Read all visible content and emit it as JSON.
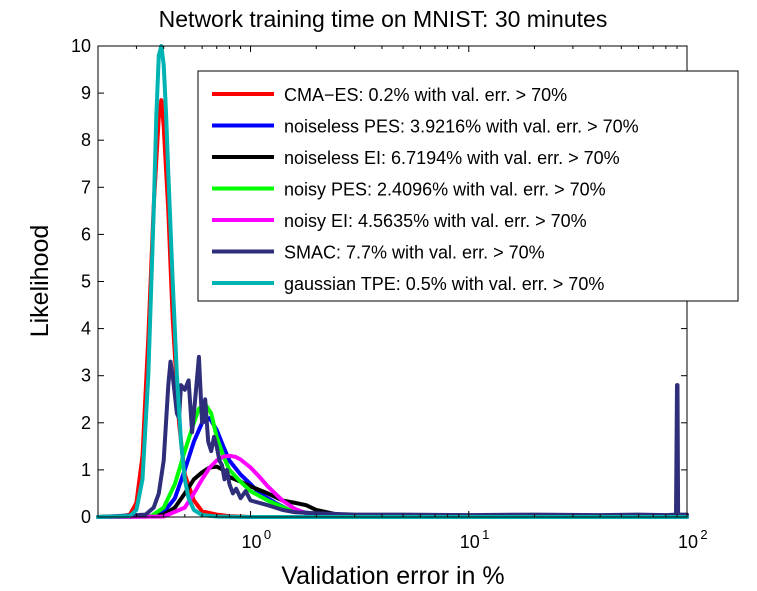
{
  "chart_data": {
    "type": "line",
    "title": "Network training time on MNIST: 30 minutes",
    "xlabel": "Validation error in %",
    "ylabel": "Likelihood",
    "xscale": "log",
    "xlim": [
      0.2,
      100
    ],
    "ylim": [
      0,
      10
    ],
    "xticks": [
      {
        "value": 1,
        "base": "10",
        "exp": "0"
      },
      {
        "value": 10,
        "base": "10",
        "exp": "1"
      },
      {
        "value": 100,
        "base": "10",
        "exp": "2"
      }
    ],
    "yticks": [
      {
        "value": 0,
        "label": "0"
      },
      {
        "value": 1,
        "label": "1"
      },
      {
        "value": 2,
        "label": "2"
      },
      {
        "value": 3,
        "label": "3"
      },
      {
        "value": 4,
        "label": "4"
      },
      {
        "value": 5,
        "label": "5"
      },
      {
        "value": 6,
        "label": "6"
      },
      {
        "value": 7,
        "label": "7"
      },
      {
        "value": 8,
        "label": "8"
      },
      {
        "value": 9,
        "label": "9"
      },
      {
        "value": 10,
        "label": "10"
      }
    ],
    "legend_position": "top-right",
    "series": [
      {
        "name": "CMA−ES: 0.2% with val. err. > 70%",
        "color": "#ff0000",
        "x": [
          0.2,
          0.25,
          0.28,
          0.3,
          0.32,
          0.34,
          0.36,
          0.38,
          0.39,
          0.4,
          0.42,
          0.44,
          0.47,
          0.5,
          0.55,
          0.6,
          0.7,
          0.8,
          1.0,
          1.5,
          2.0,
          100
        ],
        "y": [
          0,
          0,
          0.05,
          0.3,
          1.3,
          3.8,
          6.6,
          8.5,
          8.85,
          8.3,
          6.5,
          4.2,
          2.0,
          0.9,
          0.35,
          0.12,
          0.05,
          0.02,
          0,
          0,
          0,
          0
        ]
      },
      {
        "name": "noiseless PES: 3.9216% with val. err. > 70%",
        "color": "#0000ff",
        "x": [
          0.2,
          0.35,
          0.4,
          0.45,
          0.5,
          0.55,
          0.6,
          0.65,
          0.7,
          0.75,
          0.8,
          0.9,
          1.0,
          1.1,
          1.3,
          1.5,
          2.0,
          3.0,
          5.0,
          10,
          100
        ],
        "y": [
          0,
          0.02,
          0.1,
          0.4,
          1.0,
          1.6,
          2.0,
          2.1,
          1.85,
          1.5,
          1.2,
          0.9,
          0.7,
          0.5,
          0.3,
          0.15,
          0.06,
          0.03,
          0.01,
          0,
          0
        ]
      },
      {
        "name": "noiseless EI: 6.7194% with val. err. > 70%",
        "color": "#000000",
        "x": [
          0.2,
          0.35,
          0.4,
          0.45,
          0.5,
          0.55,
          0.6,
          0.65,
          0.7,
          0.75,
          0.8,
          0.9,
          1.0,
          1.2,
          1.4,
          1.6,
          1.8,
          2.0,
          2.5,
          3.0,
          5.0,
          10,
          100
        ],
        "y": [
          0,
          0.01,
          0.05,
          0.2,
          0.5,
          0.8,
          0.95,
          1.05,
          1.07,
          1.0,
          0.85,
          0.75,
          0.65,
          0.5,
          0.35,
          0.3,
          0.25,
          0.15,
          0.05,
          0.02,
          0.01,
          0,
          0
        ]
      },
      {
        "name": "noisy PES: 2.4096% with val. err. > 70%",
        "color": "#00ff00",
        "x": [
          0.2,
          0.35,
          0.4,
          0.45,
          0.5,
          0.55,
          0.58,
          0.62,
          0.66,
          0.7,
          0.75,
          0.8,
          0.9,
          1.0,
          1.2,
          1.5,
          2.0,
          3.0,
          100
        ],
        "y": [
          0,
          0.02,
          0.2,
          0.7,
          1.4,
          2.0,
          2.3,
          2.4,
          2.2,
          1.7,
          1.3,
          1.0,
          0.75,
          0.55,
          0.35,
          0.15,
          0.05,
          0.01,
          0
        ]
      },
      {
        "name": "noisy EI: 4.5635% with val. err. > 70%",
        "color": "#ff00ff",
        "x": [
          0.2,
          0.4,
          0.5,
          0.55,
          0.6,
          0.65,
          0.7,
          0.75,
          0.8,
          0.85,
          0.9,
          1.0,
          1.1,
          1.2,
          1.4,
          1.6,
          1.8,
          2.0,
          2.5,
          3.0,
          100
        ],
        "y": [
          0,
          0.01,
          0.2,
          0.5,
          0.8,
          1.05,
          1.2,
          1.28,
          1.3,
          1.28,
          1.22,
          1.05,
          0.85,
          0.65,
          0.35,
          0.17,
          0.08,
          0.03,
          0.01,
          0,
          0
        ]
      },
      {
        "name": "SMAC: 7.7% with val. err. > 70%",
        "color": "#2e2e7a",
        "x": [
          0.2,
          0.33,
          0.36,
          0.38,
          0.4,
          0.41,
          0.42,
          0.43,
          0.44,
          0.46,
          0.47,
          0.48,
          0.5,
          0.52,
          0.54,
          0.56,
          0.58,
          0.6,
          0.62,
          0.64,
          0.66,
          0.68,
          0.7,
          0.72,
          0.74,
          0.76,
          0.78,
          0.8,
          0.83,
          0.86,
          0.9,
          0.95,
          1.0,
          1.1,
          1.2,
          1.3,
          1.4,
          1.6,
          2.0,
          3.0,
          5.0,
          10,
          20,
          40,
          60,
          80,
          89,
          90,
          90.5,
          91,
          100
        ],
        "y": [
          0,
          0.05,
          0.2,
          0.5,
          1.2,
          2.0,
          2.8,
          3.3,
          3.0,
          2.2,
          2.1,
          2.8,
          2.7,
          2.9,
          1.8,
          2.6,
          3.4,
          2.0,
          2.5,
          1.6,
          1.4,
          1.7,
          1.5,
          1.2,
          1.1,
          0.8,
          1.0,
          0.7,
          0.5,
          0.6,
          0.4,
          0.55,
          0.35,
          0.3,
          0.25,
          0.2,
          0.15,
          0.1,
          0.08,
          0.05,
          0.05,
          0.04,
          0.05,
          0.04,
          0.05,
          0.04,
          0.05,
          2.8,
          2.8,
          0.05,
          0.05
        ]
      },
      {
        "name": "gaussian TPE: 0.5% with val. err. > 70%",
        "color": "#00b3b3",
        "x": [
          0.2,
          0.28,
          0.3,
          0.32,
          0.34,
          0.36,
          0.37,
          0.38,
          0.39,
          0.4,
          0.41,
          0.42,
          0.44,
          0.46,
          0.48,
          0.5,
          0.52,
          0.55,
          0.6,
          0.7,
          1.0,
          100
        ],
        "y": [
          0,
          0.02,
          0.15,
          0.8,
          3.0,
          6.5,
          8.5,
          9.8,
          10.0,
          9.6,
          8.6,
          7.3,
          5.0,
          3.0,
          1.6,
          0.8,
          0.4,
          0.15,
          0.04,
          0.01,
          0,
          0
        ]
      }
    ]
  }
}
